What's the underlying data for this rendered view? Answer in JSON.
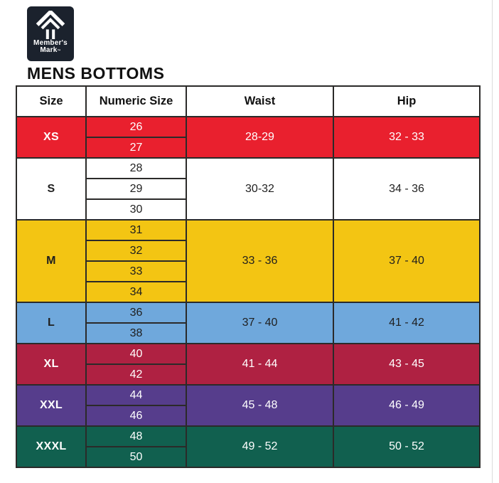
{
  "brand": {
    "line1": "Member's",
    "line2": "Mark",
    "trademark": "™"
  },
  "page_title": "MENS BOTTOMS",
  "colors": {
    "logo_bg": "#1b222d",
    "logo_fg": "#ffffff",
    "table_border": "#2b2a29",
    "edge_line": "#dcdcdc"
  },
  "table": {
    "headers": [
      "Size",
      "Numeric Size",
      "Waist",
      "Hip"
    ],
    "groups": [
      {
        "size": "XS",
        "numeric": [
          "26",
          "27"
        ],
        "waist": "28-29",
        "hip": "32 - 33",
        "bg": "#e9202e",
        "fg": "#ffffff"
      },
      {
        "size": "S",
        "numeric": [
          "28",
          "29",
          "30"
        ],
        "waist": "30-32",
        "hip": "34 - 36",
        "bg": "#ffffff",
        "fg": "#1f1f1f"
      },
      {
        "size": "M",
        "numeric": [
          "31",
          "32",
          "33",
          "34"
        ],
        "waist": "33 - 36",
        "hip": "37 - 40",
        "bg": "#f3c513",
        "fg": "#1f1f1f"
      },
      {
        "size": "L",
        "numeric": [
          "36",
          "38"
        ],
        "waist": "37 - 40",
        "hip": "41 - 42",
        "bg": "#6fa8dc",
        "fg": "#1f1f1f"
      },
      {
        "size": "XL",
        "numeric": [
          "40",
          "42"
        ],
        "waist": "41 - 44",
        "hip": "43 - 45",
        "bg": "#af2142",
        "fg": "#ffffff"
      },
      {
        "size": "XXL",
        "numeric": [
          "44",
          "46"
        ],
        "waist": "45 - 48",
        "hip": "46 - 49",
        "bg": "#563d8c",
        "fg": "#ffffff"
      },
      {
        "size": "XXXL",
        "numeric": [
          "48",
          "50"
        ],
        "waist": "49 - 52",
        "hip": "50 - 52",
        "bg": "#11604f",
        "fg": "#ffffff"
      }
    ]
  }
}
